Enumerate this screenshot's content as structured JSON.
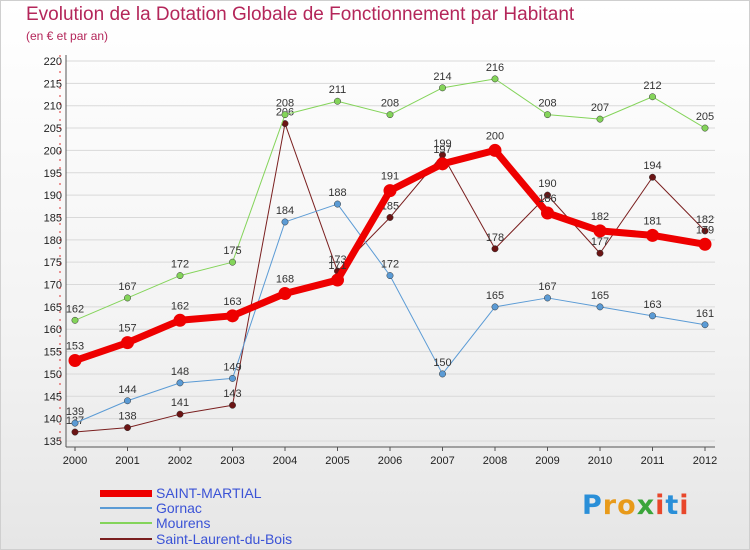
{
  "title": "Evolution de la Dotation Globale de Fonctionnement par Habitant",
  "subtitle": "(en € et par an)",
  "logo": {
    "letters": [
      "P",
      "r",
      "o",
      "x",
      "i",
      "t",
      "i"
    ],
    "colors": [
      "#2a8fd8",
      "#e89a1a",
      "#e89a1a",
      "#3aa53a",
      "#e8472b",
      "#2a8fd8",
      "#e8472b"
    ]
  },
  "chart_data": {
    "type": "line",
    "title": "Evolution de la Dotation Globale de Fonctionnement par Habitant",
    "subtitle": "(en € et par an)",
    "xlabel": "",
    "ylabel": "",
    "ylim": [
      135,
      220
    ],
    "yticks": [
      135,
      140,
      145,
      150,
      155,
      160,
      165,
      170,
      175,
      180,
      185,
      190,
      195,
      200,
      205,
      210,
      215,
      220
    ],
    "x": [
      "2000",
      "2001",
      "2002",
      "2003",
      "2004",
      "2005",
      "2006",
      "2007",
      "2008",
      "2009",
      "2010",
      "2011",
      "2012"
    ],
    "grid": "horizontal",
    "legend_position": "bottom-left",
    "series": [
      {
        "name": "SAINT-MARTIAL",
        "color": "#ee0000",
        "width": 7,
        "values": [
          153,
          157,
          162,
          163,
          168,
          171,
          191,
          197,
          200,
          186,
          182,
          181,
          179
        ]
      },
      {
        "name": "Gornac",
        "color": "#5b9bd5",
        "width": 1,
        "values": [
          139,
          144,
          148,
          149,
          184,
          188,
          172,
          150,
          165,
          167,
          165,
          163,
          161
        ]
      },
      {
        "name": "Mourens",
        "color": "#84d45a",
        "width": 1,
        "values": [
          162,
          167,
          172,
          175,
          208,
          211,
          208,
          214,
          216,
          208,
          207,
          212,
          205
        ]
      },
      {
        "name": "Saint-Laurent-du-Bois",
        "color": "#7a1f1f",
        "width": 1,
        "values": [
          137,
          138,
          141,
          143,
          206,
          173,
          185,
          199,
          178,
          190,
          177,
          194,
          182
        ]
      }
    ]
  }
}
